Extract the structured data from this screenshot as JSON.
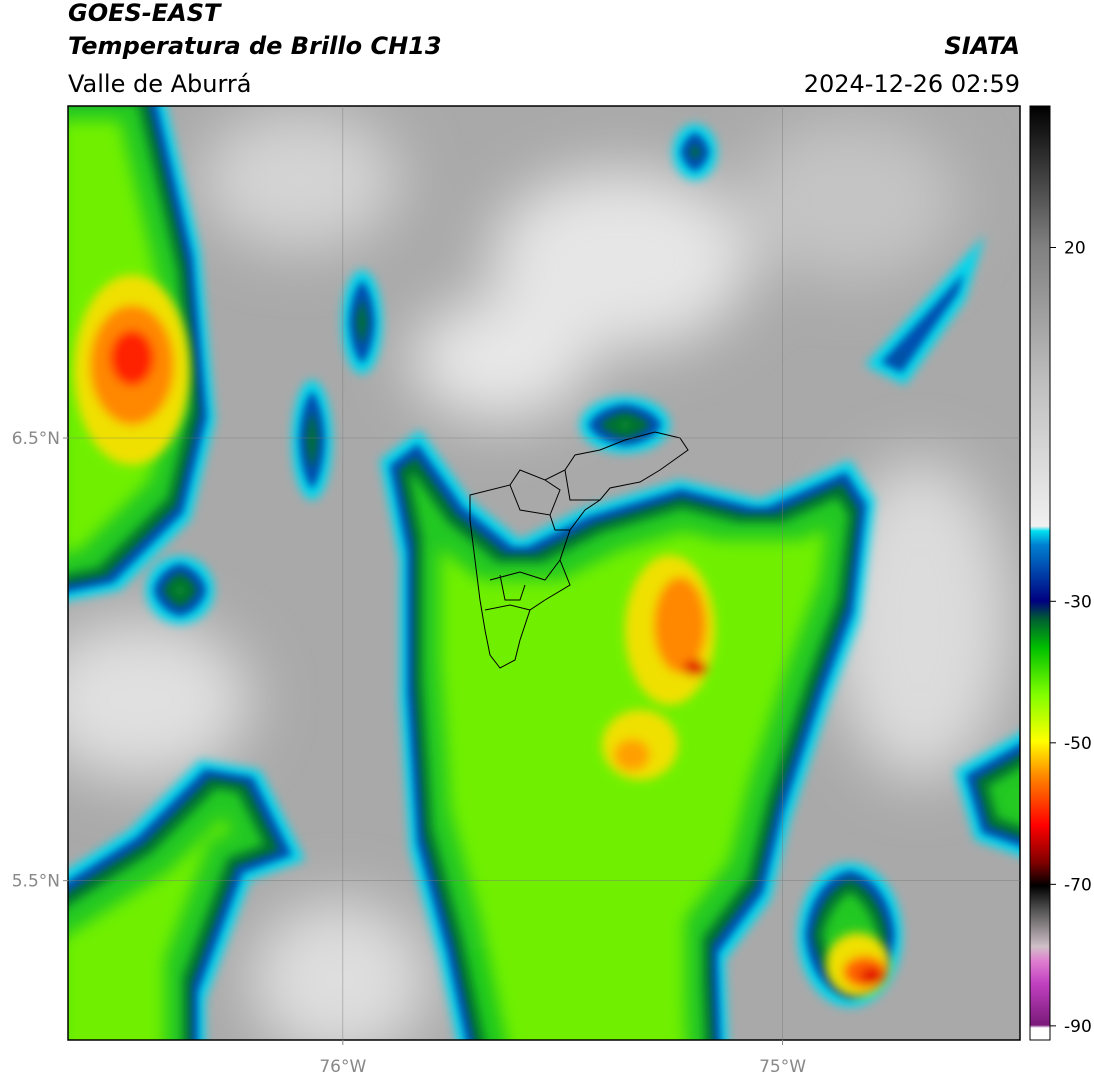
{
  "header": {
    "satellite": "GOES-EAST",
    "product": "Temperatura de Brillo CH13",
    "region": "Valle de Aburrá",
    "agency": "SIATA",
    "datetime": "2024-12-26 02:59"
  },
  "map": {
    "xlim": [
      -76.625,
      -74.46
    ],
    "ylim": [
      5.14,
      7.25
    ],
    "xticks": [
      {
        "value": -76,
        "label": "76°W"
      },
      {
        "value": -75,
        "label": "75°W"
      }
    ],
    "yticks": [
      {
        "value": 5.5,
        "label": "5.5°N"
      },
      {
        "value": 6.5,
        "label": "6.5°N"
      }
    ],
    "grid": true
  },
  "colorbar": {
    "lim": [
      -92,
      40
    ],
    "ticks": [
      20,
      -30,
      -50,
      -70,
      -90
    ]
  }
}
